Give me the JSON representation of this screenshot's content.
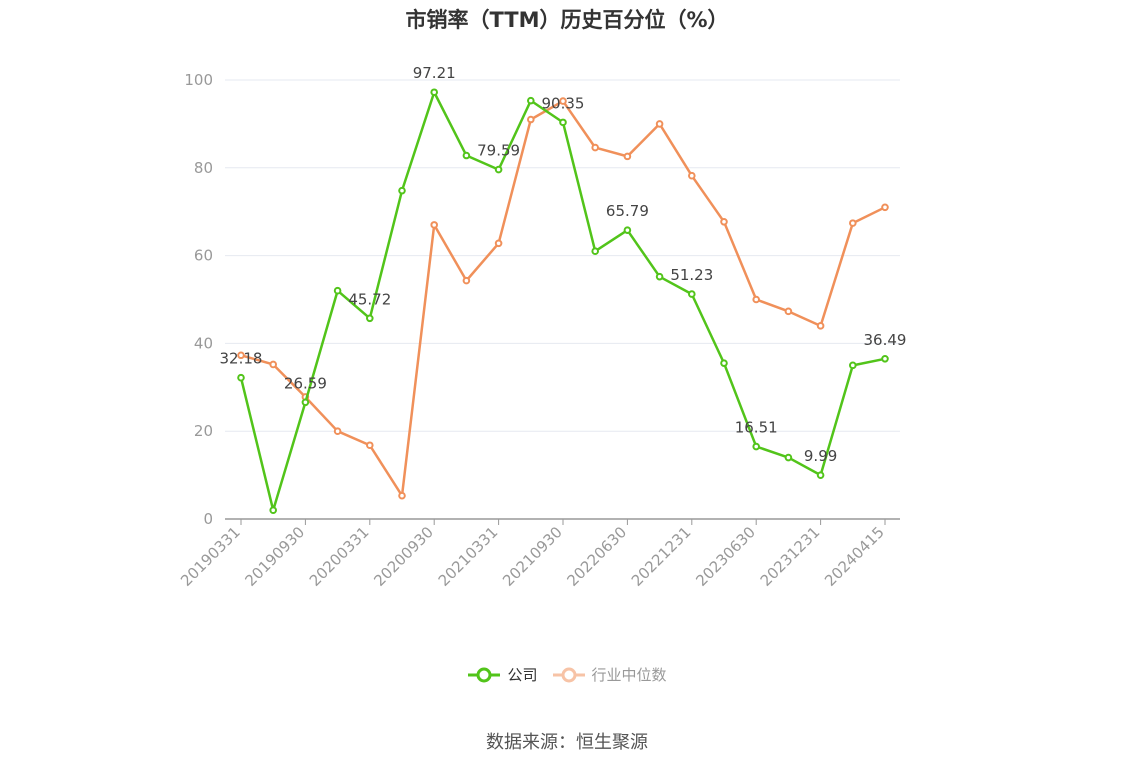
{
  "chart_data": {
    "type": "line",
    "title": "市销率（TTM）历史百分位（%）",
    "xlabel": "",
    "ylabel": "",
    "ylim": [
      0,
      100
    ],
    "yticks": [
      0,
      20,
      40,
      60,
      80,
      100
    ],
    "x": [
      "20190331",
      "20190630",
      "20190930",
      "20191231",
      "20200331",
      "20200630",
      "20200930",
      "20201231",
      "20210331",
      "20210630",
      "20210930",
      "20211231",
      "20220630",
      "20220930",
      "20221231",
      "20230331",
      "20230630",
      "20230930",
      "20231231",
      "20240331",
      "20240415"
    ],
    "x_tick_labels": [
      "20190331",
      "20190930",
      "20200331",
      "20200930",
      "20210331",
      "20210930",
      "20220630",
      "20221231",
      "20230630",
      "20231231",
      "20240415"
    ],
    "grid": true,
    "legend_position": "bottom",
    "series": [
      {
        "name": "公司",
        "color": "#52c41a",
        "values": [
          32.18,
          2,
          26.59,
          52,
          45.72,
          74.8,
          97.21,
          82.8,
          79.59,
          95.3,
          90.35,
          61,
          65.79,
          55.2,
          51.23,
          35.5,
          16.51,
          14,
          9.99,
          35,
          36.49
        ],
        "labels": [
          "32.18",
          "",
          "26.59",
          "",
          "45.72",
          "",
          "97.21",
          "",
          "79.59",
          "",
          "90.35",
          "",
          "65.79",
          "",
          "51.23",
          "",
          "16.51",
          "",
          "9.99",
          "",
          "36.49"
        ]
      },
      {
        "name": "行业中位数",
        "color": "#f0905a",
        "values": [
          37.3,
          35.2,
          27.8,
          20,
          16.8,
          5.3,
          67,
          54.3,
          62.8,
          91,
          95.2,
          84.6,
          82.6,
          90,
          78.2,
          67.7,
          50,
          47.3,
          44,
          67.4,
          71
        ]
      }
    ]
  },
  "source_note": "数据来源：恒生聚源"
}
